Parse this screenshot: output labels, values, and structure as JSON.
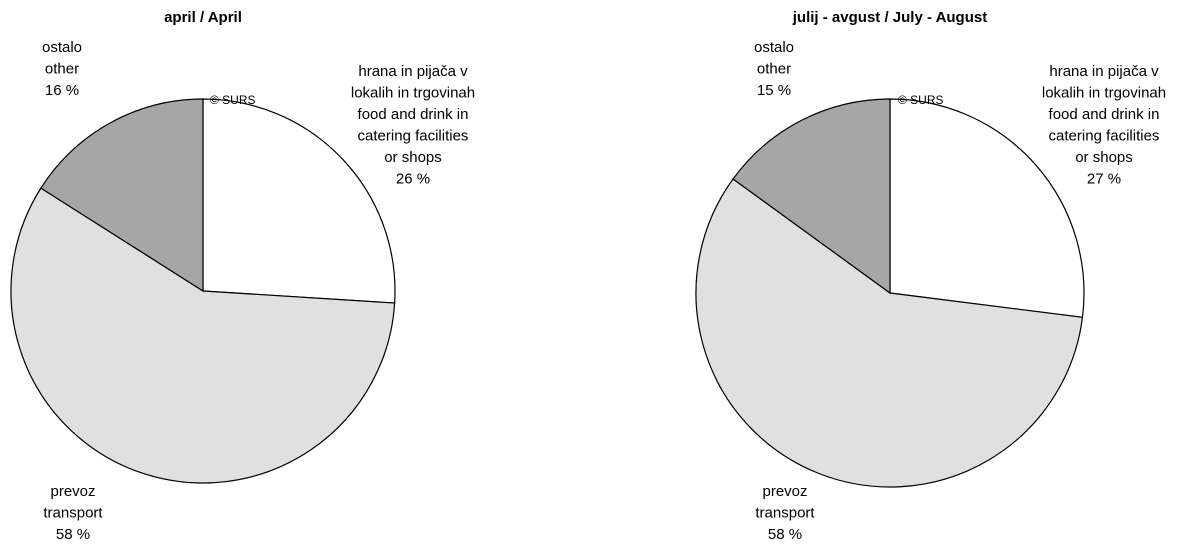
{
  "chart_data": [
    {
      "type": "pie",
      "title": "april / April",
      "annotation": "© SURS",
      "categories": [
        [
          "hrana in pijača v",
          "lokalih in trgovinah",
          "food and drink in",
          "catering facilities",
          "or shops"
        ],
        [
          "prevoz",
          "transport"
        ],
        [
          "ostalo",
          "other"
        ]
      ],
      "values": [
        26,
        58,
        16
      ],
      "value_labels": [
        "26 %",
        "58 %",
        "16 %"
      ],
      "colors": [
        "#ffffff",
        "#e0e0e0",
        "#a6a6a6"
      ]
    },
    {
      "type": "pie",
      "title": "julij - avgust / July - August",
      "annotation": "© SURS",
      "categories": [
        [
          "hrana in pijača v",
          "lokalih in trgovinah",
          "food and drink in",
          "catering facilities",
          "or shops"
        ],
        [
          "prevoz",
          "transport"
        ],
        [
          "ostalo",
          "other"
        ]
      ],
      "values": [
        27,
        58,
        15
      ],
      "value_labels": [
        "27 %",
        "58 %",
        "15 %"
      ],
      "colors": [
        "#ffffff",
        "#e0e0e0",
        "#a6a6a6"
      ]
    }
  ]
}
